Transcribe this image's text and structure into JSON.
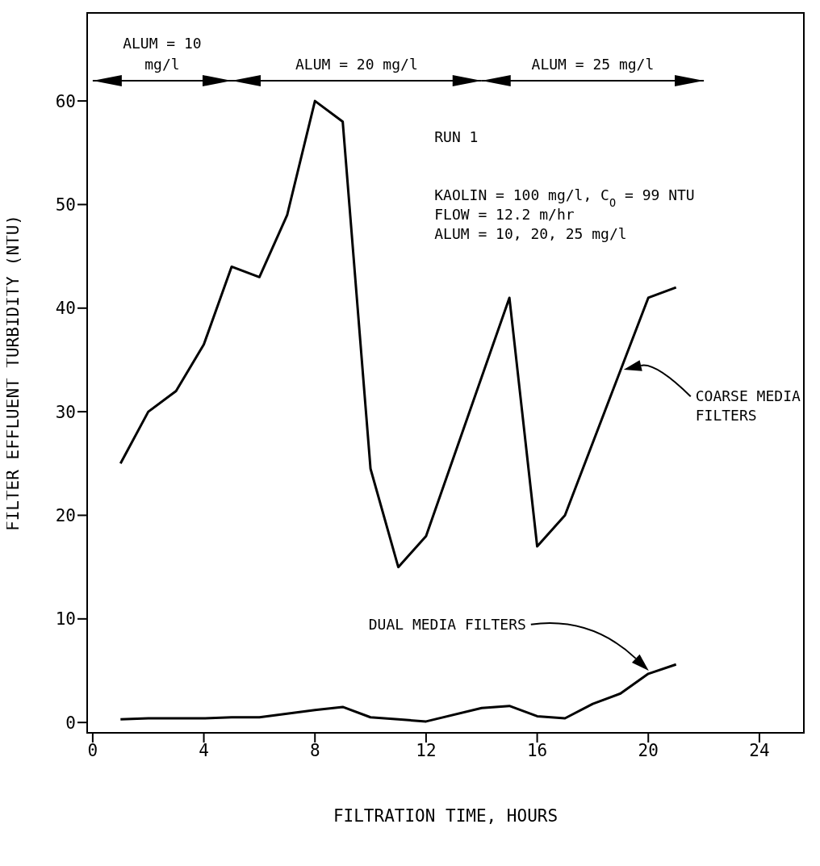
{
  "chart_data": {
    "type": "line",
    "xlabel": "FILTRATION TIME, HOURS",
    "ylabel": "FILTER EFFLUENT TURBIDITY (NTU)",
    "annotations": [
      "ALUM = 10 mg/l",
      "ALUM = 20 mg/l",
      "ALUM = 25 mg/l",
      "RUN 1",
      "KAOLIN = 100 mg/l, C$_{O}$ = 99 NTU",
      "FLOW = 12.2 m/hr",
      "ALUM = 10, 20, 25 mg/l"
    ],
    "series": [
      {
        "name": "COARSE MEDIA FILTERS",
        "color": "#000000",
        "x": [
          1,
          2,
          3,
          4,
          5,
          6,
          7,
          8,
          9,
          10,
          11,
          12,
          15,
          16,
          17,
          20,
          21
        ],
        "values": [
          25,
          30,
          32,
          36.5,
          44,
          43,
          49,
          60,
          58,
          24.5,
          15,
          18,
          41,
          17,
          20,
          41,
          42
        ]
      },
      {
        "name": "DUAL MEDIA FILTERS",
        "color": "#000000",
        "x": [
          1,
          2,
          3,
          4,
          5,
          6,
          8,
          9,
          10,
          11,
          12,
          14,
          15,
          16,
          17,
          18,
          19,
          20,
          21
        ],
        "values": [
          0.3,
          0.4,
          0.4,
          0.4,
          0.5,
          0.5,
          1.2,
          1.5,
          0.5,
          0.3,
          0.1,
          1.4,
          1.6,
          0.6,
          0.4,
          1.8,
          2.8,
          4.7,
          5.6
        ]
      }
    ],
    "xlim": [
      -0.2,
      25.6
    ],
    "xticks": [
      0,
      4,
      8,
      12,
      16,
      20,
      24
    ],
    "ylim": [
      -1,
      68.5
    ],
    "yticks": [
      0,
      10,
      20,
      30,
      40,
      50,
      60
    ],
    "legend": false,
    "marker": "none",
    "line_style": "solid",
    "grid": false
  }
}
